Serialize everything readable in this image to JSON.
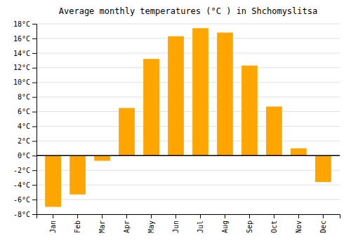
{
  "chart_data": {
    "type": "bar",
    "title": "Average monthly temperatures (°C ) in Shchomyslitsa",
    "categories": [
      "Jan",
      "Feb",
      "Mar",
      "Apr",
      "May",
      "Jun",
      "Jul",
      "Aug",
      "Sep",
      "Oct",
      "Nov",
      "Dec"
    ],
    "values": [
      -7.0,
      -5.3,
      -0.7,
      6.5,
      13.2,
      16.3,
      17.4,
      16.8,
      12.3,
      6.7,
      1.0,
      -3.6
    ],
    "color": "#FFA500",
    "ylim": [
      -8,
      18
    ],
    "yticks": [
      {
        "value": -8,
        "label": "-8°C"
      },
      {
        "value": -6,
        "label": "-6°C"
      },
      {
        "value": -4,
        "label": "-4°C"
      },
      {
        "value": -2,
        "label": "-2°C"
      },
      {
        "value": 0,
        "label": "0°C"
      },
      {
        "value": 2,
        "label": "2°C"
      },
      {
        "value": 4,
        "label": "4°C"
      },
      {
        "value": 6,
        "label": "6°C"
      },
      {
        "value": 8,
        "label": "8°C"
      },
      {
        "value": 10,
        "label": "10°C"
      },
      {
        "value": 12,
        "label": "12°C"
      },
      {
        "value": 14,
        "label": "14°C"
      },
      {
        "value": 16,
        "label": "16°C"
      },
      {
        "value": 18,
        "label": "18°C"
      }
    ],
    "grid": true
  }
}
